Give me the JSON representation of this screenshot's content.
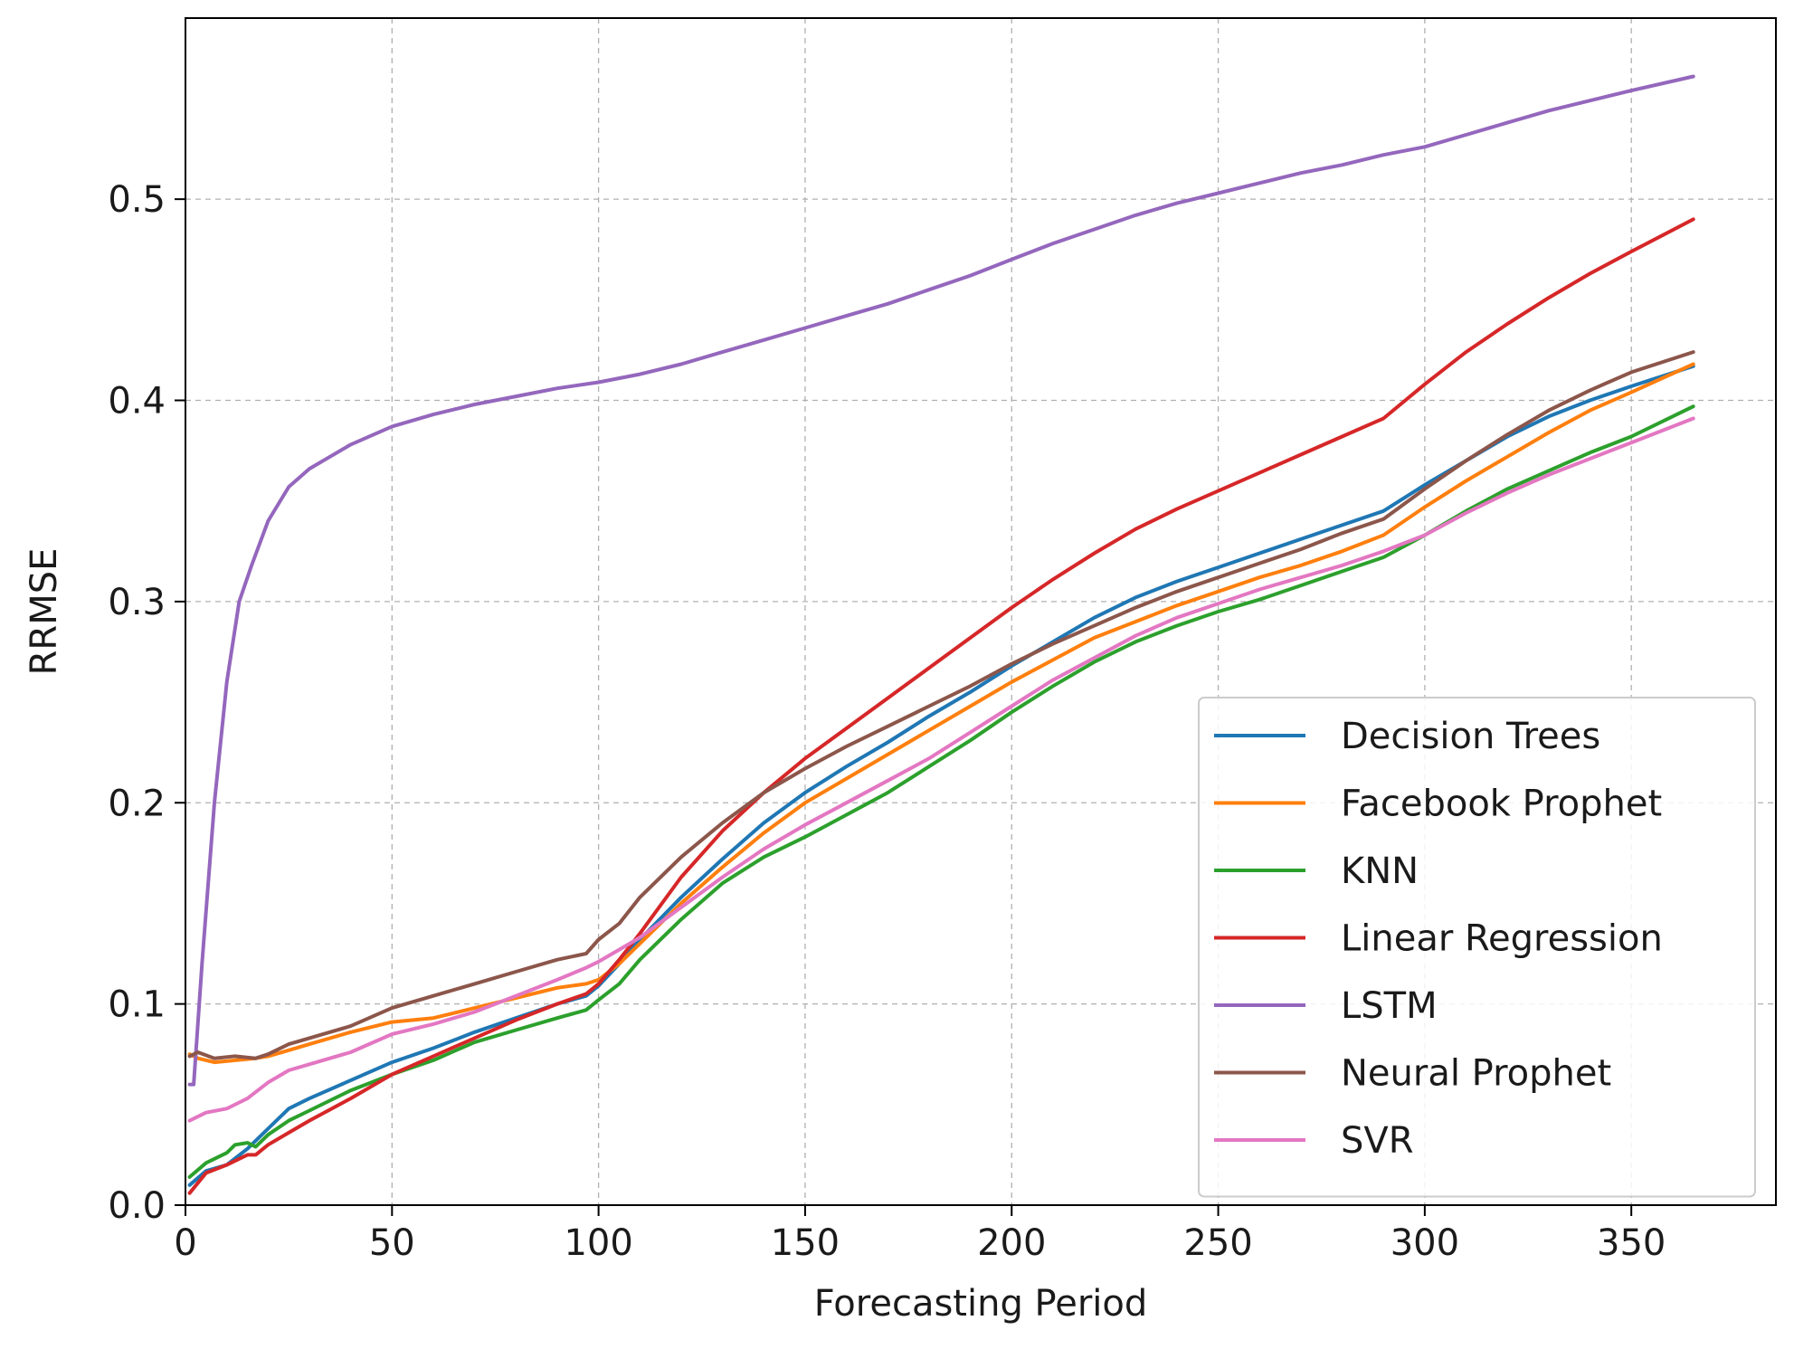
{
  "chart_data": {
    "type": "line",
    "title": "",
    "xlabel": "Forecasting Period",
    "ylabel": "RRMSE",
    "xlim": [
      0,
      385
    ],
    "ylim": [
      0,
      0.59
    ],
    "xticks": [
      0,
      50,
      100,
      150,
      200,
      250,
      300,
      350
    ],
    "xtick_labels": [
      "0",
      "50",
      "100",
      "150",
      "200",
      "250",
      "300",
      "350"
    ],
    "yticks": [
      0,
      0.1,
      0.2,
      0.3,
      0.4,
      0.5
    ],
    "ytick_labels": [
      "0.0",
      "0.1",
      "0.2",
      "0.3",
      "0.4",
      "0.5"
    ],
    "grid": true,
    "legend_position": "lower-right",
    "series": [
      {
        "name": "Decision Trees",
        "color": "#1f77b4",
        "x": [
          1,
          5,
          10,
          15,
          20,
          25,
          30,
          40,
          50,
          60,
          70,
          80,
          90,
          97,
          100,
          105,
          110,
          120,
          130,
          140,
          150,
          160,
          170,
          180,
          190,
          200,
          210,
          220,
          230,
          240,
          250,
          260,
          270,
          280,
          290,
          300,
          310,
          320,
          330,
          340,
          350,
          365
        ],
        "y": [
          0.01,
          0.017,
          0.02,
          0.028,
          0.038,
          0.048,
          0.053,
          0.062,
          0.071,
          0.078,
          0.086,
          0.093,
          0.1,
          0.104,
          0.109,
          0.12,
          0.132,
          0.153,
          0.172,
          0.19,
          0.205,
          0.218,
          0.23,
          0.243,
          0.255,
          0.268,
          0.28,
          0.292,
          0.302,
          0.31,
          0.317,
          0.324,
          0.331,
          0.338,
          0.345,
          0.358,
          0.37,
          0.382,
          0.392,
          0.4,
          0.407,
          0.417
        ]
      },
      {
        "name": "Facebook Prophet",
        "color": "#ff7f0e",
        "x": [
          1,
          3,
          7,
          12,
          17,
          20,
          25,
          30,
          40,
          50,
          60,
          70,
          80,
          90,
          97,
          100,
          105,
          110,
          120,
          130,
          140,
          150,
          160,
          170,
          180,
          190,
          200,
          210,
          220,
          230,
          240,
          250,
          260,
          270,
          280,
          290,
          300,
          310,
          320,
          330,
          340,
          350,
          365
        ],
        "y": [
          0.075,
          0.073,
          0.071,
          0.072,
          0.073,
          0.074,
          0.077,
          0.08,
          0.086,
          0.091,
          0.093,
          0.098,
          0.103,
          0.108,
          0.11,
          0.112,
          0.12,
          0.13,
          0.15,
          0.168,
          0.185,
          0.2,
          0.212,
          0.224,
          0.236,
          0.248,
          0.26,
          0.271,
          0.282,
          0.29,
          0.298,
          0.305,
          0.312,
          0.318,
          0.325,
          0.333,
          0.347,
          0.36,
          0.372,
          0.384,
          0.395,
          0.404,
          0.418
        ]
      },
      {
        "name": "KNN",
        "color": "#2ca02c",
        "x": [
          1,
          5,
          10,
          12,
          15,
          17,
          20,
          25,
          30,
          40,
          50,
          60,
          70,
          80,
          90,
          97,
          100,
          105,
          110,
          120,
          130,
          140,
          150,
          160,
          170,
          180,
          190,
          200,
          210,
          220,
          230,
          240,
          250,
          260,
          270,
          280,
          290,
          300,
          310,
          320,
          330,
          340,
          350,
          365
        ],
        "y": [
          0.014,
          0.021,
          0.026,
          0.03,
          0.031,
          0.029,
          0.035,
          0.042,
          0.047,
          0.057,
          0.065,
          0.072,
          0.081,
          0.087,
          0.093,
          0.097,
          0.102,
          0.11,
          0.122,
          0.142,
          0.16,
          0.173,
          0.183,
          0.194,
          0.205,
          0.218,
          0.231,
          0.245,
          0.258,
          0.27,
          0.28,
          0.288,
          0.295,
          0.301,
          0.308,
          0.315,
          0.322,
          0.333,
          0.345,
          0.356,
          0.365,
          0.374,
          0.382,
          0.397
        ]
      },
      {
        "name": "Linear Regression",
        "color": "#d62728",
        "x": [
          1,
          5,
          10,
          15,
          17,
          20,
          25,
          30,
          40,
          50,
          60,
          70,
          80,
          90,
          97,
          100,
          105,
          110,
          120,
          130,
          140,
          150,
          160,
          170,
          180,
          190,
          200,
          210,
          220,
          230,
          240,
          250,
          260,
          270,
          280,
          290,
          300,
          310,
          320,
          330,
          340,
          350,
          365
        ],
        "y": [
          0.006,
          0.016,
          0.02,
          0.025,
          0.025,
          0.03,
          0.036,
          0.042,
          0.053,
          0.065,
          0.074,
          0.083,
          0.092,
          0.1,
          0.105,
          0.11,
          0.122,
          0.135,
          0.163,
          0.186,
          0.205,
          0.222,
          0.237,
          0.252,
          0.267,
          0.282,
          0.297,
          0.311,
          0.324,
          0.336,
          0.346,
          0.355,
          0.364,
          0.373,
          0.382,
          0.391,
          0.408,
          0.424,
          0.438,
          0.451,
          0.463,
          0.474,
          0.49
        ]
      },
      {
        "name": "LSTM",
        "color": "#9467bd",
        "x": [
          1,
          2,
          4,
          7,
          10,
          13,
          16,
          20,
          25,
          30,
          40,
          50,
          60,
          70,
          80,
          90,
          100,
          110,
          120,
          130,
          140,
          150,
          160,
          170,
          180,
          190,
          200,
          210,
          220,
          230,
          240,
          250,
          260,
          270,
          280,
          290,
          300,
          310,
          320,
          330,
          340,
          350,
          365
        ],
        "y": [
          0.06,
          0.06,
          0.12,
          0.2,
          0.26,
          0.3,
          0.318,
          0.34,
          0.357,
          0.366,
          0.378,
          0.387,
          0.393,
          0.398,
          0.402,
          0.406,
          0.409,
          0.413,
          0.418,
          0.424,
          0.43,
          0.436,
          0.442,
          0.448,
          0.455,
          0.462,
          0.47,
          0.478,
          0.485,
          0.492,
          0.498,
          0.503,
          0.508,
          0.513,
          0.517,
          0.522,
          0.526,
          0.532,
          0.538,
          0.544,
          0.549,
          0.554,
          0.561
        ]
      },
      {
        "name": "Neural Prophet",
        "color": "#8c564b",
        "x": [
          1,
          3,
          7,
          12,
          17,
          20,
          25,
          30,
          40,
          50,
          60,
          70,
          80,
          90,
          97,
          100,
          105,
          110,
          120,
          130,
          140,
          150,
          160,
          170,
          180,
          190,
          200,
          210,
          220,
          230,
          240,
          250,
          260,
          270,
          280,
          290,
          300,
          310,
          320,
          330,
          340,
          350,
          365
        ],
        "y": [
          0.074,
          0.076,
          0.073,
          0.074,
          0.073,
          0.075,
          0.08,
          0.083,
          0.089,
          0.098,
          0.104,
          0.11,
          0.116,
          0.122,
          0.125,
          0.132,
          0.14,
          0.153,
          0.173,
          0.19,
          0.205,
          0.217,
          0.228,
          0.238,
          0.248,
          0.258,
          0.269,
          0.279,
          0.288,
          0.297,
          0.305,
          0.312,
          0.319,
          0.326,
          0.334,
          0.341,
          0.356,
          0.37,
          0.383,
          0.395,
          0.405,
          0.414,
          0.424
        ]
      },
      {
        "name": "SVR",
        "color": "#e377c2",
        "x": [
          1,
          5,
          10,
          15,
          20,
          25,
          30,
          40,
          50,
          60,
          70,
          80,
          90,
          97,
          100,
          105,
          110,
          120,
          130,
          140,
          150,
          160,
          170,
          180,
          190,
          200,
          210,
          220,
          230,
          240,
          250,
          260,
          270,
          280,
          290,
          300,
          310,
          320,
          330,
          340,
          350,
          365
        ],
        "y": [
          0.042,
          0.046,
          0.048,
          0.053,
          0.061,
          0.067,
          0.07,
          0.076,
          0.085,
          0.09,
          0.096,
          0.104,
          0.112,
          0.118,
          0.121,
          0.127,
          0.133,
          0.148,
          0.163,
          0.177,
          0.189,
          0.2,
          0.211,
          0.222,
          0.235,
          0.248,
          0.261,
          0.272,
          0.283,
          0.292,
          0.299,
          0.306,
          0.312,
          0.318,
          0.325,
          0.333,
          0.344,
          0.354,
          0.363,
          0.371,
          0.379,
          0.391
        ]
      }
    ]
  }
}
